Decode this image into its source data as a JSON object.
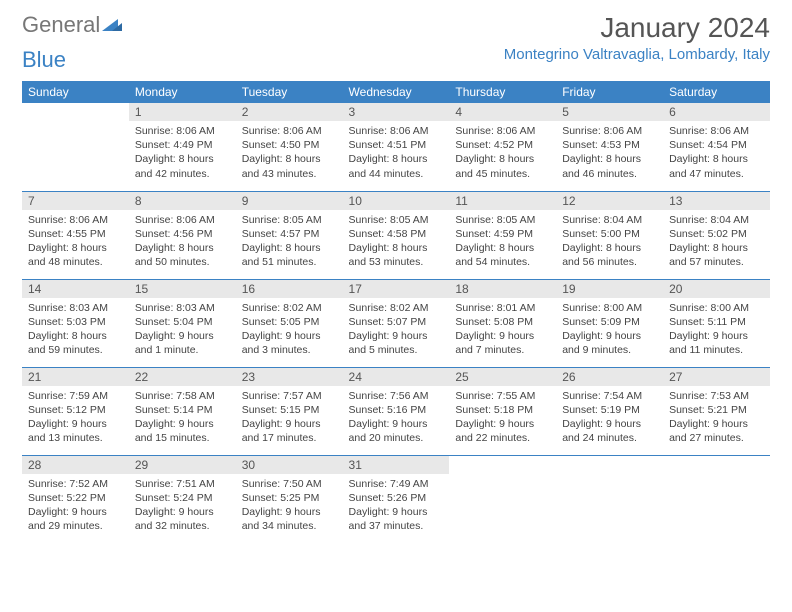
{
  "type": "calendar",
  "logo": {
    "text1": "General",
    "text2": "Blue"
  },
  "title": "January 2024",
  "location": "Montegrino Valtravaglia, Lombardy, Italy",
  "colors": {
    "header_bg": "#3b82c4",
    "header_fg": "#ffffff",
    "daynum_bg": "#e8e8e8",
    "daynum_fg": "#555555",
    "body_fg": "#444444",
    "border": "#3b82c4",
    "title_fg": "#555555",
    "location_fg": "#3b82c4",
    "background": "#ffffff"
  },
  "typography": {
    "title_fontsize": 28,
    "location_fontsize": 15,
    "weekday_fontsize": 12,
    "daynum_fontsize": 12,
    "body_fontsize": 10.5
  },
  "layout": {
    "columns": 7,
    "rows": 5,
    "first_day_column_index": 1
  },
  "weekdays": [
    "Sunday",
    "Monday",
    "Tuesday",
    "Wednesday",
    "Thursday",
    "Friday",
    "Saturday"
  ],
  "days": [
    {
      "n": "1",
      "sunrise": "8:06 AM",
      "sunset": "4:49 PM",
      "daylight": "8 hours and 42 minutes."
    },
    {
      "n": "2",
      "sunrise": "8:06 AM",
      "sunset": "4:50 PM",
      "daylight": "8 hours and 43 minutes."
    },
    {
      "n": "3",
      "sunrise": "8:06 AM",
      "sunset": "4:51 PM",
      "daylight": "8 hours and 44 minutes."
    },
    {
      "n": "4",
      "sunrise": "8:06 AM",
      "sunset": "4:52 PM",
      "daylight": "8 hours and 45 minutes."
    },
    {
      "n": "5",
      "sunrise": "8:06 AM",
      "sunset": "4:53 PM",
      "daylight": "8 hours and 46 minutes."
    },
    {
      "n": "6",
      "sunrise": "8:06 AM",
      "sunset": "4:54 PM",
      "daylight": "8 hours and 47 minutes."
    },
    {
      "n": "7",
      "sunrise": "8:06 AM",
      "sunset": "4:55 PM",
      "daylight": "8 hours and 48 minutes."
    },
    {
      "n": "8",
      "sunrise": "8:06 AM",
      "sunset": "4:56 PM",
      "daylight": "8 hours and 50 minutes."
    },
    {
      "n": "9",
      "sunrise": "8:05 AM",
      "sunset": "4:57 PM",
      "daylight": "8 hours and 51 minutes."
    },
    {
      "n": "10",
      "sunrise": "8:05 AM",
      "sunset": "4:58 PM",
      "daylight": "8 hours and 53 minutes."
    },
    {
      "n": "11",
      "sunrise": "8:05 AM",
      "sunset": "4:59 PM",
      "daylight": "8 hours and 54 minutes."
    },
    {
      "n": "12",
      "sunrise": "8:04 AM",
      "sunset": "5:00 PM",
      "daylight": "8 hours and 56 minutes."
    },
    {
      "n": "13",
      "sunrise": "8:04 AM",
      "sunset": "5:02 PM",
      "daylight": "8 hours and 57 minutes."
    },
    {
      "n": "14",
      "sunrise": "8:03 AM",
      "sunset": "5:03 PM",
      "daylight": "8 hours and 59 minutes."
    },
    {
      "n": "15",
      "sunrise": "8:03 AM",
      "sunset": "5:04 PM",
      "daylight": "9 hours and 1 minute."
    },
    {
      "n": "16",
      "sunrise": "8:02 AM",
      "sunset": "5:05 PM",
      "daylight": "9 hours and 3 minutes."
    },
    {
      "n": "17",
      "sunrise": "8:02 AM",
      "sunset": "5:07 PM",
      "daylight": "9 hours and 5 minutes."
    },
    {
      "n": "18",
      "sunrise": "8:01 AM",
      "sunset": "5:08 PM",
      "daylight": "9 hours and 7 minutes."
    },
    {
      "n": "19",
      "sunrise": "8:00 AM",
      "sunset": "5:09 PM",
      "daylight": "9 hours and 9 minutes."
    },
    {
      "n": "20",
      "sunrise": "8:00 AM",
      "sunset": "5:11 PM",
      "daylight": "9 hours and 11 minutes."
    },
    {
      "n": "21",
      "sunrise": "7:59 AM",
      "sunset": "5:12 PM",
      "daylight": "9 hours and 13 minutes."
    },
    {
      "n": "22",
      "sunrise": "7:58 AM",
      "sunset": "5:14 PM",
      "daylight": "9 hours and 15 minutes."
    },
    {
      "n": "23",
      "sunrise": "7:57 AM",
      "sunset": "5:15 PM",
      "daylight": "9 hours and 17 minutes."
    },
    {
      "n": "24",
      "sunrise": "7:56 AM",
      "sunset": "5:16 PM",
      "daylight": "9 hours and 20 minutes."
    },
    {
      "n": "25",
      "sunrise": "7:55 AM",
      "sunset": "5:18 PM",
      "daylight": "9 hours and 22 minutes."
    },
    {
      "n": "26",
      "sunrise": "7:54 AM",
      "sunset": "5:19 PM",
      "daylight": "9 hours and 24 minutes."
    },
    {
      "n": "27",
      "sunrise": "7:53 AM",
      "sunset": "5:21 PM",
      "daylight": "9 hours and 27 minutes."
    },
    {
      "n": "28",
      "sunrise": "7:52 AM",
      "sunset": "5:22 PM",
      "daylight": "9 hours and 29 minutes."
    },
    {
      "n": "29",
      "sunrise": "7:51 AM",
      "sunset": "5:24 PM",
      "daylight": "9 hours and 32 minutes."
    },
    {
      "n": "30",
      "sunrise": "7:50 AM",
      "sunset": "5:25 PM",
      "daylight": "9 hours and 34 minutes."
    },
    {
      "n": "31",
      "sunrise": "7:49 AM",
      "sunset": "5:26 PM",
      "daylight": "9 hours and 37 minutes."
    }
  ],
  "labels": {
    "sunrise": "Sunrise:",
    "sunset": "Sunset:",
    "daylight": "Daylight:"
  }
}
